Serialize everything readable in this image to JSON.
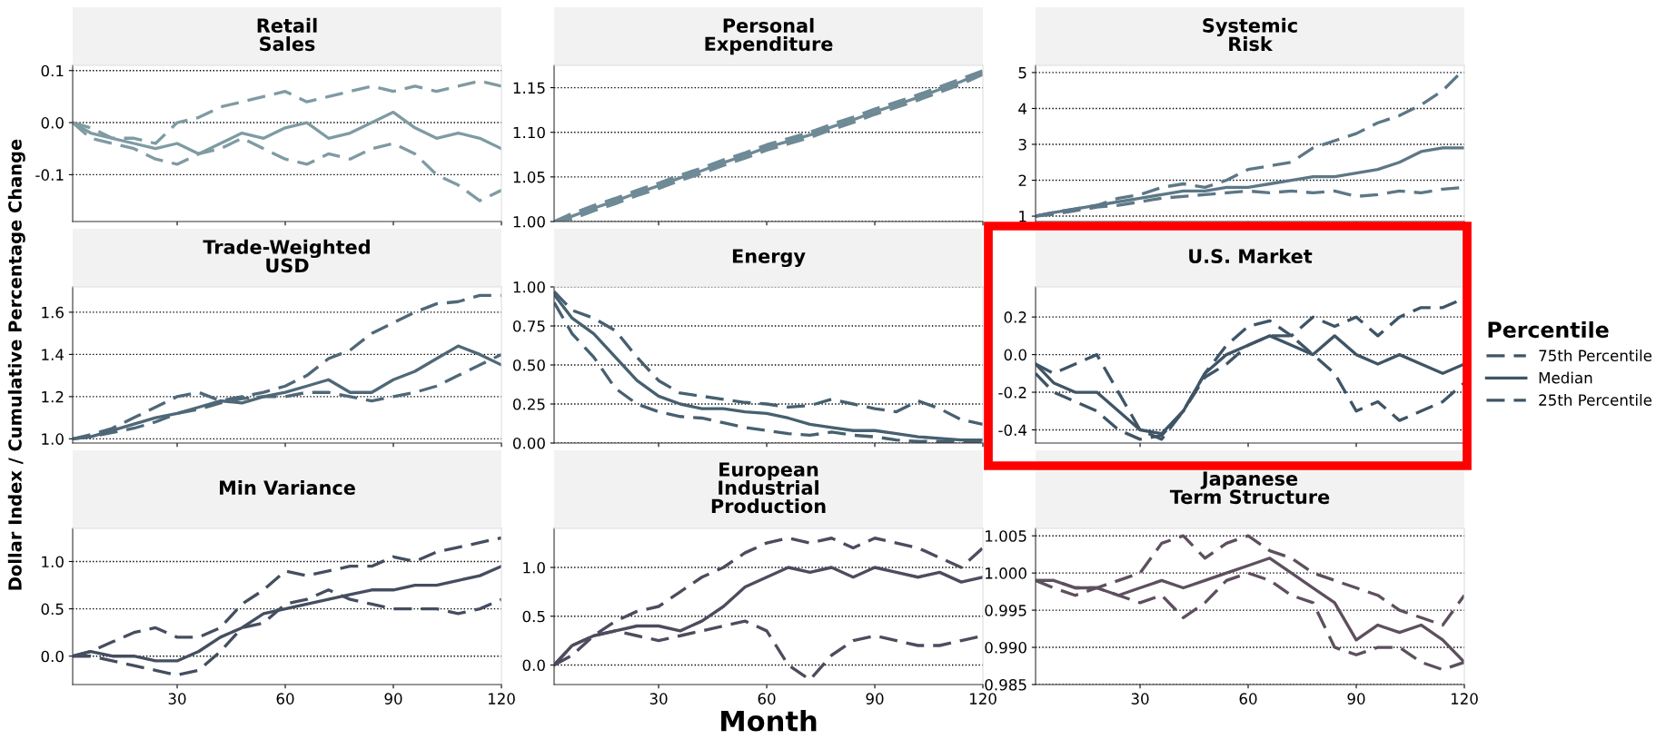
{
  "chart_data": [
    {
      "type": "line",
      "title": "Retail\nSales",
      "x": [
        1,
        6,
        12,
        18,
        24,
        30,
        36,
        42,
        48,
        54,
        60,
        66,
        72,
        78,
        84,
        90,
        96,
        102,
        108,
        114,
        120
      ],
      "xlim": [
        1,
        120
      ],
      "xticks": [
        30,
        60,
        90,
        120
      ],
      "ylim": [
        -0.19,
        0.11
      ],
      "yticks": [
        {
          "value": -0.1,
          "label": "-0.1"
        },
        {
          "value": 0.0,
          "label": "0.0"
        },
        {
          "value": 0.1,
          "label": "0.1"
        }
      ],
      "grid": "y",
      "tick_labels": "y",
      "series": [
        {
          "color": "#7f9ba3",
          "line_style": "dashed",
          "values": [
            0,
            -0.01,
            -0.03,
            -0.03,
            -0.04,
            0.0,
            0.01,
            0.03,
            0.04,
            0.05,
            0.06,
            0.04,
            0.05,
            0.06,
            0.07,
            0.06,
            0.07,
            0.06,
            0.07,
            0.08,
            0.07
          ]
        },
        {
          "color": "#7f9ba3",
          "line_style": "solid",
          "values": [
            0,
            -0.02,
            -0.03,
            -0.04,
            -0.05,
            -0.04,
            -0.06,
            -0.04,
            -0.02,
            -0.03,
            -0.01,
            0.0,
            -0.03,
            -0.02,
            0.0,
            0.02,
            -0.01,
            -0.03,
            -0.02,
            -0.03,
            -0.05
          ]
        },
        {
          "color": "#7f9ba3",
          "line_style": "dashed",
          "values": [
            0,
            -0.03,
            -0.04,
            -0.05,
            -0.07,
            -0.08,
            -0.06,
            -0.05,
            -0.03,
            -0.05,
            -0.07,
            -0.08,
            -0.06,
            -0.07,
            -0.05,
            -0.04,
            -0.06,
            -0.1,
            -0.12,
            -0.15,
            -0.13
          ]
        }
      ]
    },
    {
      "type": "line",
      "title": "Personal\nExpenditure",
      "x": [
        1,
        6,
        12,
        18,
        24,
        30,
        36,
        42,
        48,
        54,
        60,
        66,
        72,
        78,
        84,
        90,
        96,
        102,
        108,
        114,
        120
      ],
      "xlim": [
        1,
        120
      ],
      "xticks": [
        30,
        60,
        90,
        120
      ],
      "ylim": [
        1.0,
        1.175
      ],
      "yticks": [
        {
          "value": 1.0,
          "label": "1.00"
        },
        {
          "value": 1.05,
          "label": "1.05"
        },
        {
          "value": 1.1,
          "label": "1.10"
        },
        {
          "value": 1.15,
          "label": "1.15"
        }
      ],
      "grid": "y",
      "tick_labels": "y",
      "series": [
        {
          "color": "#6e8a96",
          "line_style": "dashed",
          "values": [
            1.0,
            1.009,
            1.018,
            1.026,
            1.035,
            1.043,
            1.052,
            1.06,
            1.069,
            1.077,
            1.086,
            1.093,
            1.1,
            1.109,
            1.117,
            1.126,
            1.134,
            1.142,
            1.151,
            1.16,
            1.169
          ]
        },
        {
          "color": "#6e8a96",
          "line_style": "solid",
          "values": [
            1.0,
            1.006,
            1.015,
            1.023,
            1.032,
            1.04,
            1.049,
            1.057,
            1.066,
            1.074,
            1.083,
            1.09,
            1.097,
            1.106,
            1.114,
            1.123,
            1.131,
            1.139,
            1.148,
            1.157,
            1.167
          ]
        },
        {
          "color": "#6e8a96",
          "line_style": "dashed",
          "values": [
            1.0,
            1.003,
            1.012,
            1.02,
            1.029,
            1.037,
            1.046,
            1.054,
            1.063,
            1.071,
            1.08,
            1.087,
            1.094,
            1.103,
            1.111,
            1.12,
            1.128,
            1.136,
            1.145,
            1.154,
            1.165
          ]
        }
      ]
    },
    {
      "type": "line",
      "title": "Systemic\nRisk",
      "x": [
        1,
        6,
        12,
        18,
        24,
        30,
        36,
        42,
        48,
        54,
        60,
        66,
        72,
        78,
        84,
        90,
        96,
        102,
        108,
        114,
        120
      ],
      "xlim": [
        1,
        120
      ],
      "xticks": [
        30,
        60,
        90,
        120
      ],
      "ylim": [
        0.85,
        5.2
      ],
      "yticks": [
        1,
        2,
        3,
        4,
        5
      ],
      "grid": "y",
      "tick_labels": "y",
      "series": [
        {
          "color": "#5d7786",
          "line_style": "dashed",
          "values": [
            1,
            1.1,
            1.2,
            1.3,
            1.5,
            1.6,
            1.8,
            1.9,
            1.8,
            2.0,
            2.3,
            2.4,
            2.5,
            2.9,
            3.1,
            3.3,
            3.6,
            3.8,
            4.1,
            4.5,
            5.1
          ]
        },
        {
          "color": "#5d7786",
          "line_style": "solid",
          "values": [
            1,
            1.1,
            1.2,
            1.3,
            1.4,
            1.5,
            1.6,
            1.7,
            1.7,
            1.8,
            1.8,
            1.9,
            2.0,
            2.1,
            2.1,
            2.2,
            2.3,
            2.5,
            2.8,
            2.9,
            2.9
          ]
        },
        {
          "color": "#5d7786",
          "line_style": "dashed",
          "values": [
            1,
            1.05,
            1.15,
            1.25,
            1.3,
            1.4,
            1.5,
            1.55,
            1.6,
            1.65,
            1.7,
            1.65,
            1.7,
            1.65,
            1.7,
            1.55,
            1.6,
            1.7,
            1.65,
            1.75,
            1.8
          ]
        }
      ]
    },
    {
      "type": "line",
      "title": "Trade-Weighted\nUSD",
      "ylabel": "Dollar Index / Cumulative Percentage Change",
      "x": [
        1,
        6,
        12,
        18,
        24,
        30,
        36,
        42,
        48,
        54,
        60,
        66,
        72,
        78,
        84,
        90,
        96,
        102,
        108,
        114,
        120
      ],
      "xlim": [
        1,
        120
      ],
      "xticks": [
        30,
        60,
        90,
        120
      ],
      "ylim": [
        0.98,
        1.72
      ],
      "yticks": [
        {
          "value": 1.0,
          "label": "1.0"
        },
        {
          "value": 1.2,
          "label": "1.2"
        },
        {
          "value": 1.4,
          "label": "1.4"
        },
        {
          "value": 1.6,
          "label": "1.6"
        }
      ],
      "grid": "y",
      "tick_labels": "y",
      "series": [
        {
          "color": "#4f6878",
          "line_style": "dashed",
          "values": [
            1.0,
            1.02,
            1.05,
            1.1,
            1.15,
            1.2,
            1.22,
            1.18,
            1.2,
            1.22,
            1.25,
            1.3,
            1.38,
            1.42,
            1.5,
            1.55,
            1.6,
            1.64,
            1.65,
            1.68,
            1.68
          ]
        },
        {
          "color": "#4f6878",
          "line_style": "solid",
          "values": [
            1.0,
            1.01,
            1.04,
            1.07,
            1.1,
            1.12,
            1.15,
            1.18,
            1.17,
            1.2,
            1.22,
            1.25,
            1.28,
            1.22,
            1.22,
            1.28,
            1.32,
            1.38,
            1.44,
            1.4,
            1.35
          ]
        },
        {
          "color": "#4f6878",
          "line_style": "dashed",
          "values": [
            1.0,
            1.01,
            1.03,
            1.05,
            1.08,
            1.12,
            1.14,
            1.17,
            1.19,
            1.2,
            1.2,
            1.22,
            1.22,
            1.2,
            1.18,
            1.2,
            1.22,
            1.25,
            1.3,
            1.35,
            1.4
          ]
        }
      ]
    },
    {
      "type": "line",
      "title": "Energy",
      "x": [
        1,
        6,
        12,
        18,
        24,
        30,
        36,
        42,
        48,
        54,
        60,
        66,
        72,
        78,
        84,
        90,
        96,
        102,
        108,
        114,
        120
      ],
      "xlim": [
        1,
        120
      ],
      "xticks": [
        30,
        60,
        90,
        120
      ],
      "ylim": [
        0,
        1.0
      ],
      "yticks": [
        {
          "value": 0,
          "label": "0.00"
        },
        {
          "value": 0.25,
          "label": "0.25"
        },
        {
          "value": 0.5,
          "label": "0.50"
        },
        {
          "value": 0.75,
          "label": "0.75"
        },
        {
          "value": 1.0,
          "label": "1.00"
        }
      ],
      "grid": "y",
      "tick_labels": "y",
      "series": [
        {
          "color": "#46606f",
          "line_style": "dashed",
          "values": [
            0.97,
            0.85,
            0.8,
            0.72,
            0.55,
            0.4,
            0.32,
            0.3,
            0.28,
            0.26,
            0.25,
            0.23,
            0.24,
            0.28,
            0.25,
            0.22,
            0.2,
            0.27,
            0.22,
            0.15,
            0.12
          ]
        },
        {
          "color": "#46606f",
          "line_style": "solid",
          "values": [
            0.95,
            0.8,
            0.7,
            0.55,
            0.4,
            0.3,
            0.25,
            0.22,
            0.22,
            0.2,
            0.19,
            0.16,
            0.12,
            0.1,
            0.08,
            0.08,
            0.06,
            0.04,
            0.03,
            0.02,
            0.02
          ]
        },
        {
          "color": "#46606f",
          "line_style": "dashed",
          "values": [
            0.9,
            0.7,
            0.55,
            0.35,
            0.25,
            0.2,
            0.17,
            0.16,
            0.13,
            0.1,
            0.08,
            0.06,
            0.05,
            0.07,
            0.05,
            0.04,
            0.02,
            0.01,
            0.01,
            0.01,
            0.01
          ]
        }
      ]
    },
    {
      "type": "line",
      "title": "U.S. Market",
      "legend_title": "Percentile",
      "legend": "right",
      "x": [
        1,
        6,
        12,
        18,
        24,
        30,
        36,
        42,
        48,
        54,
        60,
        66,
        72,
        78,
        84,
        90,
        96,
        102,
        108,
        114,
        120
      ],
      "xlim": [
        1,
        120
      ],
      "xticks": [
        30,
        60,
        90,
        120
      ],
      "ylim": [
        -0.47,
        0.36
      ],
      "yticks": [
        {
          "value": -0.4,
          "label": "-0.4"
        },
        {
          "value": -0.2,
          "label": "-0.2"
        },
        {
          "value": 0.0,
          "label": "0.0"
        },
        {
          "value": 0.2,
          "label": "0.2"
        }
      ],
      "grid": "y",
      "tick_labels": "y",
      "series": [
        {
          "name": "75th Percentile",
          "color": "#3f5566",
          "line_style": "dashed",
          "values": [
            -0.05,
            -0.1,
            -0.05,
            0.0,
            -0.2,
            -0.4,
            -0.45,
            -0.3,
            -0.1,
            0.05,
            0.15,
            0.18,
            0.1,
            0.2,
            0.15,
            0.2,
            0.1,
            0.2,
            0.25,
            0.25,
            0.3
          ]
        },
        {
          "name": "Median",
          "color": "#3f5566",
          "line_style": "solid",
          "values": [
            -0.05,
            -0.15,
            -0.2,
            -0.2,
            -0.3,
            -0.4,
            -0.42,
            -0.3,
            -0.1,
            0.0,
            0.05,
            0.1,
            0.05,
            0.0,
            0.1,
            0.0,
            -0.05,
            0.0,
            -0.05,
            -0.1,
            -0.05
          ]
        },
        {
          "name": "25th Percentile",
          "color": "#3f5566",
          "line_style": "dashed",
          "values": [
            -0.1,
            -0.2,
            -0.25,
            -0.3,
            -0.4,
            -0.45,
            -0.43,
            -0.3,
            -0.12,
            -0.05,
            0.05,
            0.1,
            0.1,
            0.0,
            -0.1,
            -0.3,
            -0.25,
            -0.35,
            -0.3,
            -0.25,
            -0.15
          ]
        }
      ]
    },
    {
      "type": "line",
      "title": "Min Variance",
      "x": [
        1,
        6,
        12,
        18,
        24,
        30,
        36,
        42,
        48,
        54,
        60,
        66,
        72,
        78,
        84,
        90,
        96,
        102,
        108,
        114,
        120
      ],
      "xlim": [
        1,
        120
      ],
      "xticks": [
        30,
        60,
        90,
        120
      ],
      "ylim": [
        -0.3,
        1.35
      ],
      "yticks": [
        {
          "value": 0.0,
          "label": "0.0"
        },
        {
          "value": 0.5,
          "label": "0.5"
        },
        {
          "value": 1.0,
          "label": "1.0"
        }
      ],
      "grid": "y",
      "series": [
        {
          "color": "#454e60",
          "line_style": "dashed",
          "values": [
            0.0,
            0.05,
            0.15,
            0.25,
            0.3,
            0.2,
            0.2,
            0.3,
            0.55,
            0.7,
            0.9,
            0.85,
            0.9,
            0.95,
            0.95,
            1.05,
            1.0,
            1.1,
            1.15,
            1.2,
            1.25
          ]
        },
        {
          "color": "#454e60",
          "line_style": "solid",
          "values": [
            0.0,
            0.05,
            0.0,
            0.0,
            -0.05,
            -0.05,
            0.05,
            0.2,
            0.3,
            0.45,
            0.5,
            0.55,
            0.6,
            0.65,
            0.7,
            0.7,
            0.75,
            0.75,
            0.8,
            0.85,
            0.95
          ]
        },
        {
          "color": "#454e60",
          "line_style": "dashed",
          "values": [
            0.0,
            0.0,
            -0.05,
            -0.1,
            -0.15,
            -0.2,
            -0.15,
            0.05,
            0.3,
            0.35,
            0.55,
            0.6,
            0.7,
            0.6,
            0.55,
            0.5,
            0.5,
            0.5,
            0.45,
            0.5,
            0.6
          ]
        }
      ]
    },
    {
      "type": "line",
      "title": "European\nIndustrial\nProduction",
      "xlabel": "Month",
      "x": [
        1,
        6,
        12,
        18,
        24,
        30,
        36,
        42,
        48,
        54,
        60,
        66,
        72,
        78,
        84,
        90,
        96,
        102,
        108,
        114,
        120
      ],
      "xlim": [
        1,
        120
      ],
      "xticks": [
        30,
        60,
        90,
        120
      ],
      "ylim": [
        -0.2,
        1.4
      ],
      "yticks": [
        {
          "value": 0.0,
          "label": "0.0"
        },
        {
          "value": 0.5,
          "label": "0.5"
        },
        {
          "value": 1.0,
          "label": "1.0"
        }
      ],
      "grid": "y",
      "series": [
        {
          "color": "#4f4b5e",
          "line_style": "dashed",
          "values": [
            0.0,
            0.1,
            0.3,
            0.45,
            0.55,
            0.6,
            0.75,
            0.9,
            1.0,
            1.15,
            1.25,
            1.3,
            1.25,
            1.3,
            1.2,
            1.3,
            1.25,
            1.2,
            1.1,
            1.0,
            1.2
          ]
        },
        {
          "color": "#4f4b5e",
          "line_style": "solid",
          "values": [
            0.0,
            0.2,
            0.3,
            0.35,
            0.4,
            0.4,
            0.35,
            0.45,
            0.6,
            0.8,
            0.9,
            1.0,
            0.95,
            1.0,
            0.9,
            1.0,
            0.95,
            0.9,
            0.95,
            0.85,
            0.9
          ]
        },
        {
          "color": "#4f4b5e",
          "line_style": "dashed",
          "values": [
            0.0,
            0.2,
            0.3,
            0.35,
            0.3,
            0.25,
            0.3,
            0.35,
            0.4,
            0.45,
            0.35,
            0.0,
            -0.15,
            0.1,
            0.25,
            0.3,
            0.25,
            0.2,
            0.2,
            0.25,
            0.3
          ]
        }
      ]
    },
    {
      "type": "line",
      "title": "Japanese\nTerm Structure",
      "x": [
        1,
        6,
        12,
        18,
        24,
        30,
        36,
        42,
        48,
        54,
        60,
        66,
        72,
        78,
        84,
        90,
        96,
        102,
        108,
        114,
        120
      ],
      "xlim": [
        1,
        120
      ],
      "xticks": [
        30,
        60,
        90,
        120
      ],
      "ylim": [
        0.985,
        1.006
      ],
      "yticks": [
        {
          "value": 0.985,
          "label": "0.985"
        },
        {
          "value": 0.99,
          "label": "0.990"
        },
        {
          "value": 0.995,
          "label": "0.995"
        },
        {
          "value": 1.0,
          "label": "1.000"
        },
        {
          "value": 1.005,
          "label": "1.005"
        }
      ],
      "grid": "y",
      "series": [
        {
          "color": "#5e4f5f",
          "line_style": "dashed",
          "values": [
            0.999,
            0.999,
            0.998,
            0.998,
            0.999,
            1.0,
            1.004,
            1.005,
            1.002,
            1.004,
            1.005,
            1.003,
            1.002,
            1.0,
            0.999,
            0.998,
            0.997,
            0.995,
            0.994,
            0.993,
            0.997
          ]
        },
        {
          "color": "#5e4f5f",
          "line_style": "solid",
          "values": [
            0.999,
            0.999,
            0.998,
            0.998,
            0.997,
            0.998,
            0.999,
            0.998,
            0.999,
            1.0,
            1.001,
            1.002,
            1.0,
            0.998,
            0.996,
            0.991,
            0.993,
            0.992,
            0.993,
            0.991,
            0.988
          ]
        },
        {
          "color": "#5e4f5f",
          "line_style": "dashed",
          "values": [
            0.999,
            0.998,
            0.997,
            0.998,
            0.997,
            0.996,
            0.997,
            0.994,
            0.996,
            0.999,
            1.0,
            0.999,
            0.997,
            0.996,
            0.99,
            0.989,
            0.99,
            0.99,
            0.988,
            0.987,
            0.988
          ]
        }
      ]
    }
  ]
}
